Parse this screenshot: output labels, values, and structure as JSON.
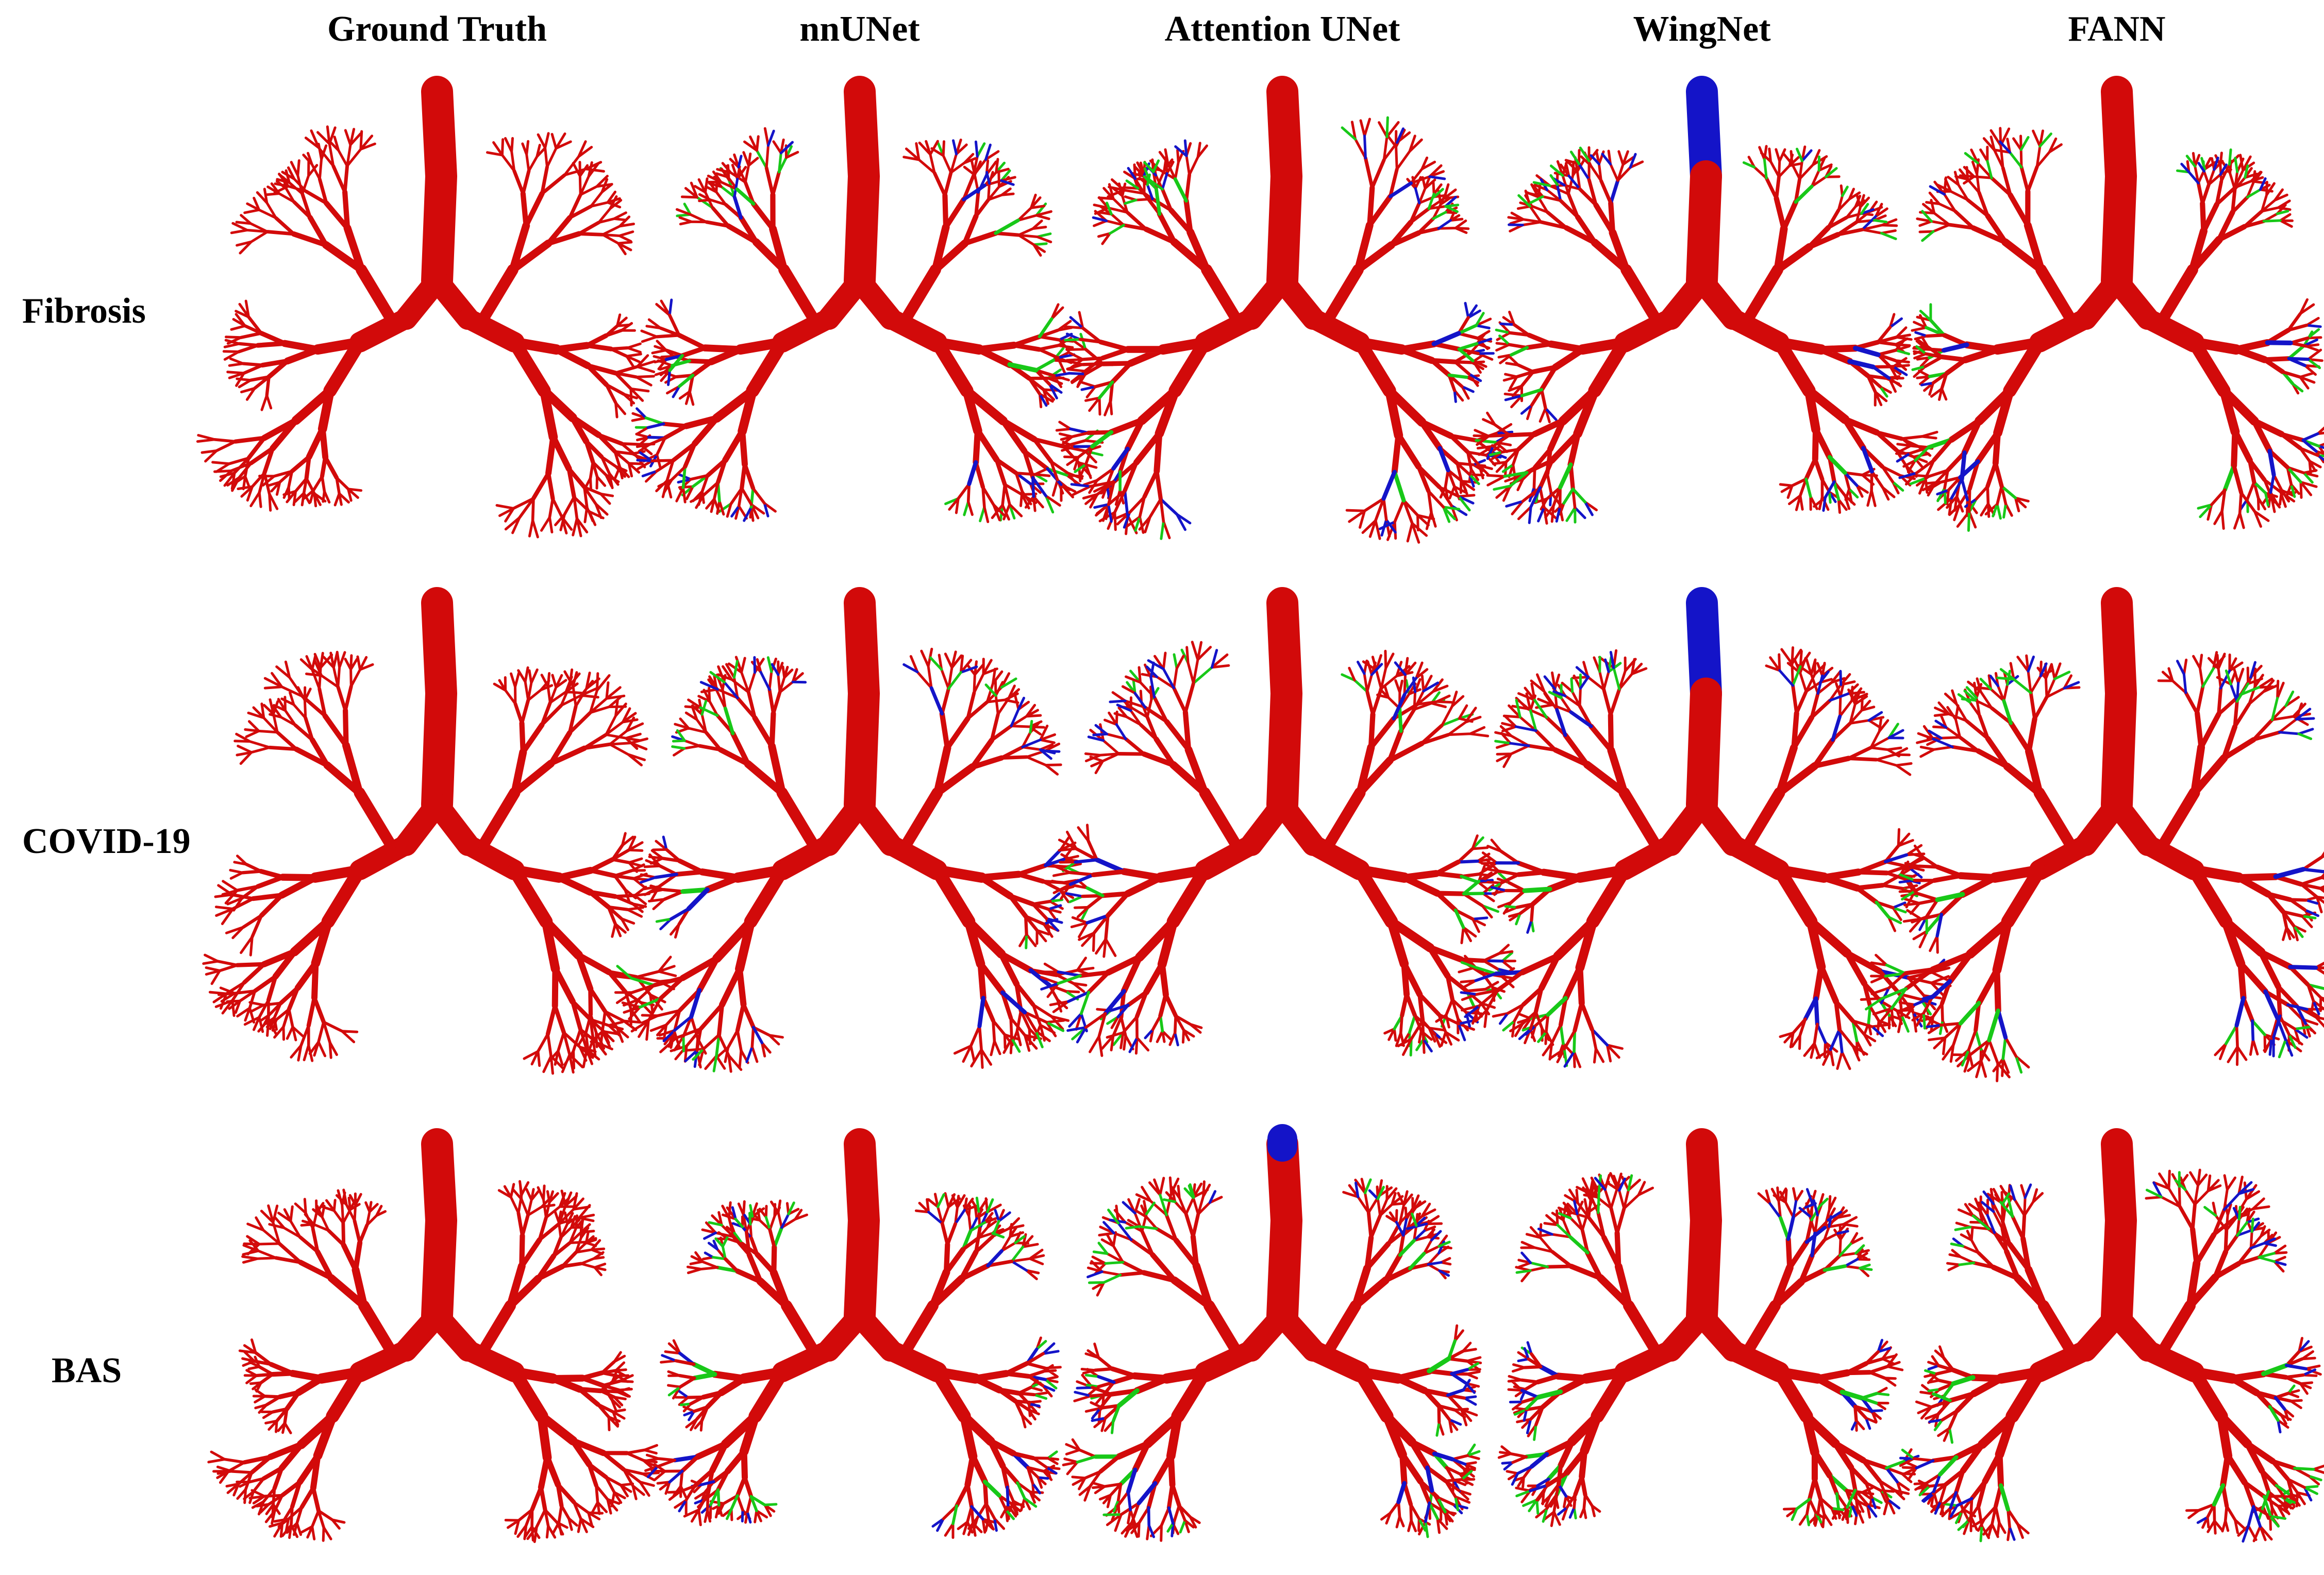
{
  "columns": [
    "Ground Truth",
    "nnUNet",
    "Attention UNet",
    "WingNet",
    "FANN"
  ],
  "rows": [
    "Fibrosis",
    "COVID-19",
    "BAS"
  ]
}
